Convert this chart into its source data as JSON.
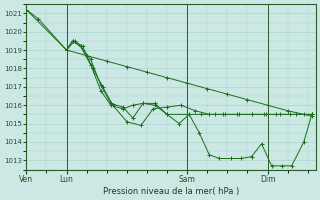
{
  "background_color": "#cce8e4",
  "grid_color": "#aad4d0",
  "line_color": "#1a6e1a",
  "marker_color": "#1a6e1a",
  "xlabel_text": "Pression niveau de la mer( hPa )",
  "ylim": [
    1012.5,
    1021.5
  ],
  "yticks": [
    1013,
    1014,
    1015,
    1016,
    1017,
    1018,
    1019,
    1020,
    1021
  ],
  "xtick_labels": [
    "Ven",
    "Lun",
    "Sam",
    "Dim"
  ],
  "xtick_positions": [
    0.0,
    1.0,
    4.0,
    6.0
  ],
  "xlim": [
    0,
    7.2
  ],
  "series": [
    {
      "x": [
        0.0,
        0.3,
        1.0,
        1.15,
        1.35,
        1.6,
        1.85,
        2.1,
        2.4,
        2.65,
        2.9,
        3.2,
        3.5,
        3.8,
        4.05,
        4.3,
        4.55,
        4.8,
        5.1,
        5.35,
        5.6,
        5.85,
        6.1,
        6.35,
        6.6,
        6.9,
        7.1
      ],
      "y": [
        1021.2,
        1020.7,
        1019.0,
        1019.5,
        1019.2,
        1018.5,
        1017.1,
        1016.1,
        1015.9,
        1015.3,
        1016.1,
        1016.1,
        1015.5,
        1015.0,
        1015.5,
        1014.5,
        1013.3,
        1013.1,
        1013.1,
        1013.1,
        1013.2,
        1013.9,
        1012.7,
        1012.7,
        1012.7,
        1014.0,
        1015.5
      ]
    },
    {
      "x": [
        0.0,
        1.0,
        1.5,
        2.0,
        2.5,
        3.0,
        3.5,
        4.0,
        4.5,
        5.0,
        5.5,
        6.0,
        6.5,
        7.1
      ],
      "y": [
        1021.2,
        1019.0,
        1018.7,
        1018.4,
        1018.1,
        1017.8,
        1017.5,
        1017.2,
        1016.9,
        1016.6,
        1016.3,
        1016.0,
        1015.7,
        1015.4
      ]
    },
    {
      "x": [
        1.0,
        1.15,
        1.35,
        1.6,
        1.85,
        2.1,
        2.4,
        2.65,
        2.9,
        3.2,
        3.5,
        4.0,
        4.35,
        4.7,
        4.95,
        5.3,
        5.6,
        5.9,
        6.2,
        6.55,
        6.9,
        7.1
      ],
      "y": [
        1019.0,
        1019.5,
        1019.2,
        1018.2,
        1016.8,
        1016.0,
        1015.8,
        1016.0,
        1016.1,
        1016.0,
        1015.5,
        1015.5,
        1015.5,
        1015.5,
        1015.5,
        1015.5,
        1015.5,
        1015.5,
        1015.5,
        1015.5,
        1015.5,
        1015.5
      ]
    },
    {
      "x": [
        1.0,
        1.2,
        1.4,
        1.65,
        1.9,
        2.15,
        2.5,
        2.85,
        3.15,
        3.5,
        3.85,
        4.2,
        4.55,
        4.9,
        5.25,
        5.6,
        5.95,
        6.3,
        6.7,
        7.1
      ],
      "y": [
        1019.0,
        1019.5,
        1019.2,
        1018.0,
        1017.0,
        1016.0,
        1015.1,
        1014.9,
        1015.8,
        1015.9,
        1016.0,
        1015.7,
        1015.5,
        1015.5,
        1015.5,
        1015.5,
        1015.5,
        1015.5,
        1015.5,
        1015.5
      ]
    }
  ],
  "vlines": [
    0.0,
    1.0,
    4.0,
    6.0
  ],
  "figsize": [
    3.2,
    2.0
  ],
  "dpi": 100
}
